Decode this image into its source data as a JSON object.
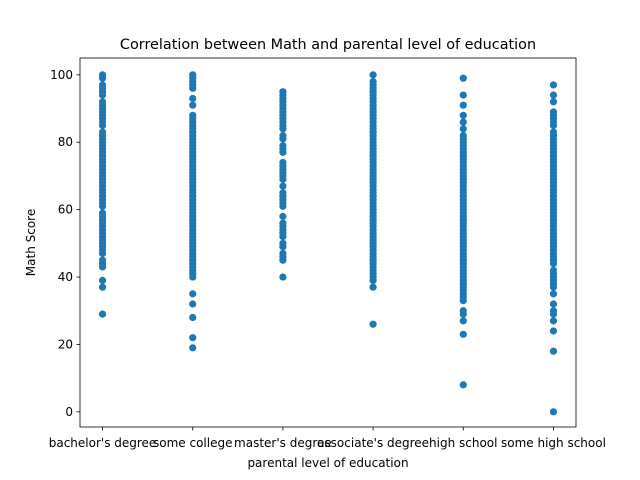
{
  "chart_data": {
    "type": "scatter",
    "title": "Correlation between Math and parental level of education",
    "xlabel": "parental level of education",
    "ylabel": "Math Score",
    "ylim": [
      -4.5,
      105
    ],
    "yticks": [
      0,
      20,
      40,
      60,
      80,
      100
    ],
    "grid": false,
    "color": "#1f77b4",
    "categories": [
      "bachelor's degree",
      "some college",
      "master's degree",
      "associate's degree",
      "high school",
      "some high school"
    ],
    "series": [
      {
        "category": "bachelor's degree",
        "values": [
          29,
          37,
          39,
          43,
          44,
          45,
          47,
          48,
          49,
          50,
          51,
          52,
          53,
          54,
          55,
          56,
          57,
          58,
          59,
          61,
          62,
          63,
          64,
          65,
          66,
          67,
          68,
          69,
          70,
          71,
          72,
          73,
          74,
          75,
          76,
          77,
          78,
          79,
          80,
          81,
          82,
          83,
          85,
          86,
          87,
          88,
          89,
          90,
          91,
          92,
          94,
          95,
          96,
          97,
          99,
          100
        ]
      },
      {
        "category": "some college",
        "values": [
          19,
          22,
          28,
          32,
          35,
          40,
          41,
          42,
          43,
          44,
          45,
          46,
          47,
          48,
          49,
          50,
          51,
          52,
          53,
          54,
          55,
          56,
          57,
          58,
          59,
          60,
          61,
          62,
          63,
          64,
          65,
          66,
          67,
          68,
          69,
          70,
          71,
          72,
          73,
          74,
          75,
          76,
          77,
          78,
          79,
          80,
          81,
          82,
          83,
          84,
          85,
          86,
          87,
          88,
          91,
          93,
          96,
          97,
          98,
          99,
          100
        ]
      },
      {
        "category": "master's degree",
        "values": [
          40,
          45,
          46,
          47,
          49,
          50,
          52,
          53,
          54,
          55,
          56,
          58,
          61,
          62,
          63,
          64,
          65,
          67,
          69,
          70,
          71,
          72,
          73,
          74,
          77,
          78,
          79,
          81,
          82,
          84,
          85,
          86,
          87,
          88,
          89,
          90,
          91,
          92,
          93,
          94,
          95
        ]
      },
      {
        "category": "associate's degree",
        "values": [
          26,
          37,
          39,
          40,
          41,
          42,
          43,
          44,
          45,
          46,
          47,
          48,
          49,
          50,
          51,
          52,
          53,
          54,
          55,
          56,
          57,
          58,
          59,
          60,
          61,
          62,
          63,
          64,
          65,
          66,
          67,
          68,
          69,
          70,
          71,
          72,
          73,
          74,
          75,
          76,
          77,
          78,
          79,
          80,
          81,
          82,
          83,
          84,
          85,
          86,
          87,
          88,
          89,
          90,
          91,
          92,
          93,
          94,
          95,
          96,
          97,
          98,
          100
        ]
      },
      {
        "category": "high school",
        "values": [
          8,
          23,
          27,
          29,
          30,
          33,
          34,
          35,
          36,
          37,
          38,
          39,
          40,
          41,
          42,
          43,
          44,
          45,
          46,
          47,
          48,
          49,
          50,
          51,
          52,
          53,
          54,
          55,
          56,
          57,
          58,
          59,
          60,
          61,
          62,
          63,
          64,
          65,
          66,
          67,
          68,
          69,
          70,
          71,
          72,
          73,
          74,
          75,
          76,
          77,
          78,
          79,
          80,
          81,
          82,
          84,
          86,
          88,
          91,
          94,
          99
        ]
      },
      {
        "category": "some high school",
        "values": [
          0,
          18,
          24,
          27,
          29,
          30,
          32,
          35,
          37,
          38,
          39,
          40,
          41,
          42,
          44,
          45,
          46,
          47,
          48,
          49,
          50,
          51,
          52,
          53,
          54,
          55,
          56,
          57,
          58,
          59,
          60,
          61,
          62,
          63,
          64,
          65,
          66,
          67,
          68,
          69,
          70,
          71,
          72,
          73,
          74,
          75,
          76,
          77,
          78,
          79,
          80,
          81,
          82,
          83,
          85,
          86,
          87,
          88,
          89,
          92,
          94,
          97
        ]
      }
    ]
  }
}
